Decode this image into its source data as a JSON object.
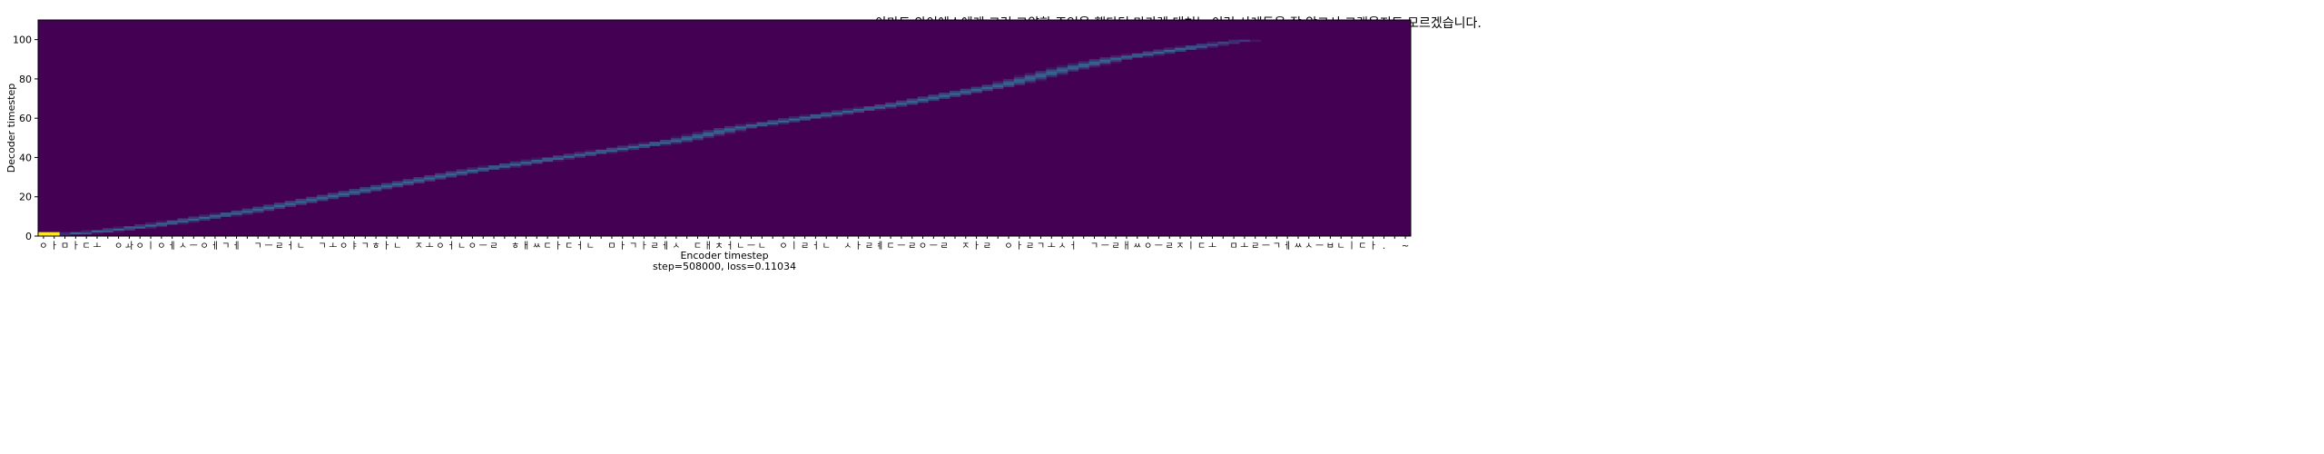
{
  "chart_data": {
    "type": "heatmap",
    "title": "아마도 와이에스에게 그런 고약한 조언을 했다던 마가렛 대처는 이런 사례들을 잘 알고서 그랬을지도 모르겠습니다.",
    "xlabel": "Encoder timestep",
    "xlabel_sub": "step=508000, loss=0.11034",
    "ylabel": "Decoder timestep",
    "xlim": [
      0,
      128
    ],
    "ylim": [
      0,
      110
    ],
    "yticks": [
      0,
      20,
      40,
      60,
      80,
      100
    ],
    "xtick_labels": [
      "ㅇ",
      "ㅏ",
      "ㅁ",
      "ㅏ",
      "ㄷ",
      "ㅗ",
      " ",
      "ㅇ",
      "ㅘ",
      "ㅇ",
      "ㅣ",
      "ㅇ",
      "ㅔ",
      "ㅅ",
      "ㅡ",
      "ㅇ",
      "ㅔ",
      "ㄱ",
      "ㅔ",
      " ",
      "ㄱ",
      "ㅡ",
      "ㄹ",
      "ㅓ",
      "ㄴ",
      " ",
      "ㄱ",
      "ㅗ",
      "ㅇ",
      "ㅑ",
      "ㄱ",
      "ㅎ",
      "ㅏ",
      "ㄴ",
      " ",
      "ㅈ",
      "ㅗ",
      "ㅇ",
      "ㅓ",
      "ㄴ",
      "ㅇ",
      "ㅡ",
      "ㄹ",
      " ",
      "ㅎ",
      "ㅐ",
      "ㅆ",
      "ㄷ",
      "ㅏ",
      "ㄷ",
      "ㅓ",
      "ㄴ",
      " ",
      "ㅁ",
      "ㅏ",
      "ㄱ",
      "ㅏ",
      "ㄹ",
      "ㅔ",
      "ㅅ",
      " ",
      "ㄷ",
      "ㅐ",
      "ㅊ",
      "ㅓ",
      "ㄴ",
      "ㅡ",
      "ㄴ",
      " ",
      "ㅇ",
      "ㅣ",
      "ㄹ",
      "ㅓ",
      "ㄴ",
      " ",
      "ㅅ",
      "ㅏ",
      "ㄹ",
      "ㅖ",
      "ㄷ",
      "ㅡ",
      "ㄹ",
      "ㅇ",
      "ㅡ",
      "ㄹ",
      " ",
      "ㅈ",
      "ㅏ",
      "ㄹ",
      " ",
      "ㅇ",
      "ㅏ",
      "ㄹ",
      "ㄱ",
      "ㅗ",
      "ㅅ",
      "ㅓ",
      " ",
      "ㄱ",
      "ㅡ",
      "ㄹ",
      "ㅐ",
      "ㅆ",
      "ㅇ",
      "ㅡ",
      "ㄹ",
      "ㅈ",
      "ㅣ",
      "ㄷ",
      "ㅗ",
      " ",
      "ㅁ",
      "ㅗ",
      "ㄹ",
      "ㅡ",
      "ㄱ",
      "ㅔ",
      "ㅆ",
      "ㅅ",
      "ㅡ",
      "ㅂ",
      "ㄴ",
      "ㅣ",
      "ㄷ",
      "ㅏ",
      ".",
      " ",
      "~"
    ],
    "alignment_path": [
      [
        0,
        0
      ],
      [
        5,
        2
      ],
      [
        10,
        5
      ],
      [
        15,
        9
      ],
      [
        20,
        13
      ],
      [
        25,
        18
      ],
      [
        30,
        23
      ],
      [
        35,
        28
      ],
      [
        40,
        33
      ],
      [
        45,
        37
      ],
      [
        50,
        41
      ],
      [
        55,
        45
      ],
      [
        60,
        49
      ],
      [
        65,
        55
      ],
      [
        70,
        59
      ],
      [
        75,
        63
      ],
      [
        80,
        67
      ],
      [
        85,
        72
      ],
      [
        90,
        77
      ],
      [
        95,
        84
      ],
      [
        100,
        90
      ],
      [
        105,
        94
      ],
      [
        110,
        98
      ],
      [
        113,
        100
      ]
    ],
    "colormap": "viridis",
    "background_color": "#440154",
    "peak_color": "#fde725"
  }
}
